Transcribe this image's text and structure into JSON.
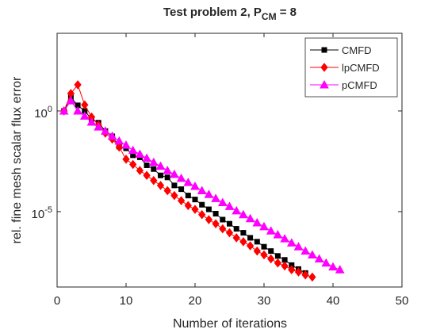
{
  "chart_data": {
    "type": "line",
    "title_parts": [
      "Test problem 2, P",
      "CM",
      " = 8"
    ],
    "x_label": "Number of iterations",
    "y_label": "rel. fine mesh scalar flux error",
    "xlim": [
      0,
      50
    ],
    "xticks": [
      0,
      10,
      20,
      30,
      40,
      50
    ],
    "ylim": [
      1.8e-09,
      7200
    ],
    "log_y": true,
    "yticks": [
      {
        "value": 1,
        "label": "10",
        "exponent": "0"
      },
      {
        "value": 1e-05,
        "label": "10",
        "exponent": "-5"
      }
    ],
    "legend": "upper right",
    "series": [
      {
        "name": "CMFD",
        "color": "#000000",
        "marker": "square",
        "x": [
          1,
          2,
          3,
          4,
          5,
          6,
          7,
          8,
          9,
          10,
          11,
          12,
          13,
          14,
          15,
          16,
          17,
          18,
          19,
          20,
          21,
          22,
          23,
          24,
          25,
          26,
          27,
          28,
          29,
          30,
          31,
          32,
          33,
          34,
          35,
          36
        ],
        "values": [
          1,
          4.7,
          1.9,
          1,
          0.4,
          0.26,
          0.1,
          0.055,
          0.017,
          0.014,
          0.0063,
          0.005,
          0.002,
          0.0013,
          0.00063,
          0.0005,
          0.0002,
          0.00013,
          6.3e-05,
          4e-05,
          2.2e-05,
          1.3e-05,
          7.9e-06,
          4e-06,
          2.5e-06,
          1.4e-06,
          8.9e-07,
          5e-07,
          3.2e-07,
          1.8e-07,
          1.1e-07,
          6.3e-08,
          4e-08,
          2.2e-08,
          1.4e-08,
          8.9e-09
        ]
      },
      {
        "name": "lpCMFD",
        "color": "#ff0000",
        "marker": "diamond",
        "x": [
          1,
          2,
          3,
          4,
          5,
          6,
          7,
          8,
          9,
          10,
          11,
          12,
          13,
          14,
          15,
          16,
          17,
          18,
          19,
          20,
          21,
          22,
          23,
          24,
          25,
          26,
          27,
          28,
          29,
          30,
          31,
          32,
          33,
          34,
          35,
          36,
          37
        ],
        "values": [
          1,
          7.4,
          20,
          2,
          0.5,
          0.2,
          0.079,
          0.04,
          0.016,
          0.004,
          0.0022,
          0.0011,
          0.00063,
          0.00035,
          0.0002,
          0.00011,
          6.3e-05,
          3.5e-05,
          2e-05,
          1.3e-05,
          7.1e-06,
          4e-06,
          2.5e-06,
          1.4e-06,
          8.9e-07,
          5e-07,
          3.2e-07,
          2e-07,
          1.1e-07,
          7.1e-08,
          4.5e-08,
          2.8e-08,
          2e-08,
          1.3e-08,
          1e-08,
          7.1e-09,
          5.6e-09
        ]
      },
      {
        "name": "pCMFD",
        "color": "#ff00ff",
        "marker": "triangle",
        "x": [
          1,
          2,
          3,
          4,
          5,
          6,
          7,
          8,
          9,
          10,
          11,
          12,
          13,
          14,
          15,
          16,
          17,
          18,
          19,
          20,
          21,
          22,
          23,
          24,
          25,
          26,
          27,
          28,
          29,
          30,
          31,
          32,
          33,
          34,
          35,
          36,
          37,
          38,
          39,
          40,
          41
        ],
        "values": [
          1,
          3.2,
          1,
          0.56,
          0.28,
          0.16,
          0.1,
          0.056,
          0.032,
          0.02,
          0.011,
          0.0071,
          0.0045,
          0.0028,
          0.0018,
          0.0011,
          0.00071,
          0.00045,
          0.00028,
          0.00018,
          0.00011,
          7.1e-05,
          4.5e-05,
          2.8e-05,
          1.8e-05,
          1.1e-05,
          7.1e-06,
          4.5e-06,
          2.8e-06,
          1.8e-06,
          1.1e-06,
          7.1e-07,
          4.5e-07,
          2.8e-07,
          1.8e-07,
          1.1e-07,
          7.1e-08,
          4.5e-08,
          2.8e-08,
          1.8e-08,
          1.3e-08
        ]
      }
    ]
  }
}
